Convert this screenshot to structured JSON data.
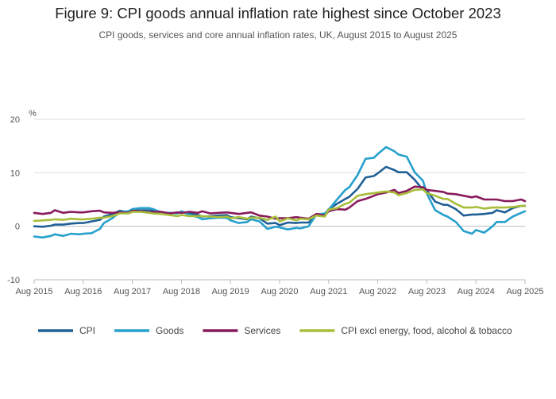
{
  "title": "Figure 9: CPI goods annual inflation rate highest since October 2023",
  "subtitle": "CPI goods, services and core annual inflation rates, UK, August 2015 to August 2025",
  "chart_data": {
    "type": "line",
    "ylabel": "%",
    "xlabel": "",
    "ylim": [
      -10,
      20
    ],
    "yticks": [
      20,
      10,
      0,
      -10
    ],
    "x_start": "2015-08",
    "x_end": "2025-08",
    "xticks": [
      "Aug 2015",
      "Aug 2016",
      "Aug 2017",
      "Aug 2018",
      "Aug 2019",
      "Aug 2020",
      "Aug 2021",
      "Aug 2022",
      "Aug 2023",
      "Aug 2024",
      "Aug 2025"
    ],
    "grid": true,
    "legend_position": "bottom",
    "series": [
      {
        "name": "CPI",
        "color": "#206095",
        "values": [
          [
            2015.58,
            0.0
          ],
          [
            2015.75,
            -0.1
          ],
          [
            2015.92,
            0.1
          ],
          [
            2016.0,
            0.3
          ],
          [
            2016.17,
            0.3
          ],
          [
            2016.33,
            0.5
          ],
          [
            2016.5,
            0.6
          ],
          [
            2016.58,
            0.6
          ],
          [
            2016.75,
            0.9
          ],
          [
            2016.92,
            1.2
          ],
          [
            2017.0,
            1.8
          ],
          [
            2017.17,
            2.3
          ],
          [
            2017.33,
            2.9
          ],
          [
            2017.5,
            2.6
          ],
          [
            2017.58,
            2.9
          ],
          [
            2017.75,
            3.0
          ],
          [
            2017.92,
            3.0
          ],
          [
            2018.0,
            3.0
          ],
          [
            2018.17,
            2.5
          ],
          [
            2018.33,
            2.4
          ],
          [
            2018.5,
            2.5
          ],
          [
            2018.58,
            2.7
          ],
          [
            2018.75,
            2.4
          ],
          [
            2018.92,
            2.1
          ],
          [
            2019.0,
            1.8
          ],
          [
            2019.17,
            1.9
          ],
          [
            2019.33,
            2.0
          ],
          [
            2019.5,
            2.1
          ],
          [
            2019.58,
            1.7
          ],
          [
            2019.75,
            1.5
          ],
          [
            2019.92,
            1.3
          ],
          [
            2020.0,
            1.8
          ],
          [
            2020.17,
            1.5
          ],
          [
            2020.33,
            0.5
          ],
          [
            2020.5,
            0.6
          ],
          [
            2020.58,
            0.2
          ],
          [
            2020.75,
            0.7
          ],
          [
            2020.92,
            0.6
          ],
          [
            2021.0,
            0.7
          ],
          [
            2021.17,
            0.7
          ],
          [
            2021.33,
            2.1
          ],
          [
            2021.5,
            2.0
          ],
          [
            2021.58,
            3.2
          ],
          [
            2021.75,
            4.2
          ],
          [
            2021.92,
            5.1
          ],
          [
            2022.0,
            5.5
          ],
          [
            2022.17,
            7.0
          ],
          [
            2022.33,
            9.1
          ],
          [
            2022.5,
            9.4
          ],
          [
            2022.58,
            9.9
          ],
          [
            2022.75,
            11.1
          ],
          [
            2022.92,
            10.5
          ],
          [
            2023.0,
            10.1
          ],
          [
            2023.17,
            10.1
          ],
          [
            2023.33,
            8.7
          ],
          [
            2023.5,
            6.8
          ],
          [
            2023.58,
            6.7
          ],
          [
            2023.75,
            4.6
          ],
          [
            2023.92,
            4.0
          ],
          [
            2024.0,
            4.0
          ],
          [
            2024.17,
            3.2
          ],
          [
            2024.33,
            2.0
          ],
          [
            2024.5,
            2.2
          ],
          [
            2024.58,
            2.2
          ],
          [
            2024.75,
            2.3
          ],
          [
            2024.92,
            2.5
          ],
          [
            2025.0,
            3.0
          ],
          [
            2025.17,
            2.6
          ],
          [
            2025.33,
            3.4
          ],
          [
            2025.5,
            3.8
          ],
          [
            2025.58,
            3.8
          ]
        ]
      },
      {
        "name": "Goods",
        "color": "#27a0cc",
        "values": [
          [
            2015.58,
            -1.9
          ],
          [
            2015.75,
            -2.1
          ],
          [
            2015.92,
            -1.8
          ],
          [
            2016.0,
            -1.5
          ],
          [
            2016.17,
            -1.8
          ],
          [
            2016.33,
            -1.4
          ],
          [
            2016.5,
            -1.5
          ],
          [
            2016.58,
            -1.4
          ],
          [
            2016.75,
            -1.3
          ],
          [
            2016.92,
            -0.5
          ],
          [
            2017.0,
            0.6
          ],
          [
            2017.17,
            1.5
          ],
          [
            2017.33,
            2.7
          ],
          [
            2017.5,
            2.8
          ],
          [
            2017.58,
            3.2
          ],
          [
            2017.75,
            3.4
          ],
          [
            2017.92,
            3.4
          ],
          [
            2018.0,
            3.2
          ],
          [
            2018.17,
            2.6
          ],
          [
            2018.33,
            2.5
          ],
          [
            2018.5,
            2.4
          ],
          [
            2018.58,
            2.8
          ],
          [
            2018.75,
            2.1
          ],
          [
            2018.92,
            1.7
          ],
          [
            2019.0,
            1.3
          ],
          [
            2019.17,
            1.5
          ],
          [
            2019.33,
            1.6
          ],
          [
            2019.5,
            1.6
          ],
          [
            2019.58,
            1.1
          ],
          [
            2019.75,
            0.6
          ],
          [
            2019.92,
            0.8
          ],
          [
            2020.0,
            1.3
          ],
          [
            2020.17,
            0.9
          ],
          [
            2020.33,
            -0.5
          ],
          [
            2020.5,
            -0.1
          ],
          [
            2020.58,
            -0.2
          ],
          [
            2020.75,
            -0.6
          ],
          [
            2020.92,
            -0.3
          ],
          [
            2021.0,
            -0.4
          ],
          [
            2021.17,
            0.0
          ],
          [
            2021.33,
            2.2
          ],
          [
            2021.5,
            2.4
          ],
          [
            2021.58,
            3.1
          ],
          [
            2021.75,
            5.0
          ],
          [
            2021.92,
            6.8
          ],
          [
            2022.0,
            7.3
          ],
          [
            2022.17,
            9.6
          ],
          [
            2022.33,
            12.6
          ],
          [
            2022.5,
            12.8
          ],
          [
            2022.58,
            13.5
          ],
          [
            2022.75,
            14.8
          ],
          [
            2022.92,
            14.0
          ],
          [
            2023.0,
            13.4
          ],
          [
            2023.17,
            13.0
          ],
          [
            2023.33,
            10.1
          ],
          [
            2023.5,
            8.5
          ],
          [
            2023.58,
            6.1
          ],
          [
            2023.75,
            3.0
          ],
          [
            2023.92,
            2.1
          ],
          [
            2024.0,
            1.8
          ],
          [
            2024.17,
            0.8
          ],
          [
            2024.33,
            -0.9
          ],
          [
            2024.5,
            -1.4
          ],
          [
            2024.58,
            -0.7
          ],
          [
            2024.75,
            -1.2
          ],
          [
            2024.92,
            0.0
          ],
          [
            2025.0,
            0.8
          ],
          [
            2025.17,
            0.8
          ],
          [
            2025.33,
            1.8
          ],
          [
            2025.5,
            2.5
          ],
          [
            2025.58,
            2.8
          ]
        ]
      },
      {
        "name": "Services",
        "color": "#871a5b",
        "values": [
          [
            2015.58,
            2.5
          ],
          [
            2015.75,
            2.3
          ],
          [
            2015.92,
            2.5
          ],
          [
            2016.0,
            3.0
          ],
          [
            2016.17,
            2.5
          ],
          [
            2016.33,
            2.7
          ],
          [
            2016.5,
            2.6
          ],
          [
            2016.58,
            2.6
          ],
          [
            2016.75,
            2.8
          ],
          [
            2016.92,
            2.9
          ],
          [
            2017.0,
            2.6
          ],
          [
            2017.17,
            2.5
          ],
          [
            2017.33,
            2.6
          ],
          [
            2017.5,
            2.5
          ],
          [
            2017.58,
            2.9
          ],
          [
            2017.75,
            2.8
          ],
          [
            2017.92,
            2.6
          ],
          [
            2018.0,
            2.7
          ],
          [
            2018.17,
            2.7
          ],
          [
            2018.33,
            2.4
          ],
          [
            2018.5,
            2.6
          ],
          [
            2018.58,
            2.5
          ],
          [
            2018.75,
            2.7
          ],
          [
            2018.92,
            2.5
          ],
          [
            2019.0,
            2.8
          ],
          [
            2019.17,
            2.4
          ],
          [
            2019.33,
            2.5
          ],
          [
            2019.5,
            2.6
          ],
          [
            2019.58,
            2.5
          ],
          [
            2019.75,
            2.3
          ],
          [
            2019.92,
            2.5
          ],
          [
            2020.0,
            2.6
          ],
          [
            2020.17,
            2.0
          ],
          [
            2020.33,
            1.8
          ],
          [
            2020.5,
            1.4
          ],
          [
            2020.58,
            1.5
          ],
          [
            2020.75,
            1.5
          ],
          [
            2020.92,
            1.7
          ],
          [
            2021.0,
            1.6
          ],
          [
            2021.17,
            1.4
          ],
          [
            2021.33,
            2.3
          ],
          [
            2021.5,
            2.0
          ],
          [
            2021.58,
            2.8
          ],
          [
            2021.75,
            3.2
          ],
          [
            2021.92,
            3.1
          ],
          [
            2022.0,
            3.5
          ],
          [
            2022.17,
            4.7
          ],
          [
            2022.33,
            5.1
          ],
          [
            2022.5,
            5.7
          ],
          [
            2022.58,
            6.0
          ],
          [
            2022.75,
            6.3
          ],
          [
            2022.92,
            6.8
          ],
          [
            2023.0,
            6.2
          ],
          [
            2023.17,
            6.6
          ],
          [
            2023.33,
            7.4
          ],
          [
            2023.5,
            7.3
          ],
          [
            2023.58,
            6.8
          ],
          [
            2023.75,
            6.6
          ],
          [
            2023.92,
            6.4
          ],
          [
            2024.0,
            6.1
          ],
          [
            2024.17,
            6.0
          ],
          [
            2024.33,
            5.7
          ],
          [
            2024.5,
            5.4
          ],
          [
            2024.58,
            5.6
          ],
          [
            2024.75,
            5.0
          ],
          [
            2024.92,
            5.0
          ],
          [
            2025.0,
            5.0
          ],
          [
            2025.17,
            4.7
          ],
          [
            2025.33,
            4.7
          ],
          [
            2025.5,
            5.0
          ],
          [
            2025.58,
            4.7
          ]
        ]
      },
      {
        "name": "CPI excl energy, food, alcohol & tobacco",
        "color": "#a8bd3a",
        "values": [
          [
            2015.58,
            1.0
          ],
          [
            2015.75,
            1.1
          ],
          [
            2015.92,
            1.2
          ],
          [
            2016.0,
            1.3
          ],
          [
            2016.17,
            1.2
          ],
          [
            2016.33,
            1.4
          ],
          [
            2016.5,
            1.3
          ],
          [
            2016.58,
            1.3
          ],
          [
            2016.75,
            1.4
          ],
          [
            2016.92,
            1.6
          ],
          [
            2017.0,
            1.6
          ],
          [
            2017.17,
            1.9
          ],
          [
            2017.33,
            2.4
          ],
          [
            2017.5,
            2.4
          ],
          [
            2017.58,
            2.7
          ],
          [
            2017.75,
            2.7
          ],
          [
            2017.92,
            2.5
          ],
          [
            2018.0,
            2.4
          ],
          [
            2018.17,
            2.3
          ],
          [
            2018.33,
            2.1
          ],
          [
            2018.5,
            1.9
          ],
          [
            2018.58,
            2.1
          ],
          [
            2018.75,
            1.9
          ],
          [
            2018.92,
            1.9
          ],
          [
            2019.0,
            1.9
          ],
          [
            2019.17,
            1.8
          ],
          [
            2019.33,
            1.7
          ],
          [
            2019.5,
            1.8
          ],
          [
            2019.58,
            1.5
          ],
          [
            2019.75,
            1.7
          ],
          [
            2019.92,
            1.4
          ],
          [
            2020.0,
            1.6
          ],
          [
            2020.17,
            1.6
          ],
          [
            2020.33,
            1.2
          ],
          [
            2020.5,
            1.8
          ],
          [
            2020.58,
            0.9
          ],
          [
            2020.75,
            1.5
          ],
          [
            2020.92,
            1.1
          ],
          [
            2021.0,
            1.4
          ],
          [
            2021.17,
            1.3
          ],
          [
            2021.33,
            2.0
          ],
          [
            2021.5,
            1.8
          ],
          [
            2021.58,
            3.1
          ],
          [
            2021.75,
            3.4
          ],
          [
            2021.92,
            4.2
          ],
          [
            2022.0,
            4.4
          ],
          [
            2022.17,
            5.7
          ],
          [
            2022.33,
            6.0
          ],
          [
            2022.5,
            6.2
          ],
          [
            2022.58,
            6.3
          ],
          [
            2022.75,
            6.5
          ],
          [
            2022.92,
            6.3
          ],
          [
            2023.0,
            5.8
          ],
          [
            2023.17,
            6.2
          ],
          [
            2023.33,
            6.8
          ],
          [
            2023.5,
            6.9
          ],
          [
            2023.58,
            6.2
          ],
          [
            2023.75,
            5.7
          ],
          [
            2023.92,
            5.1
          ],
          [
            2024.0,
            5.1
          ],
          [
            2024.17,
            4.2
          ],
          [
            2024.33,
            3.5
          ],
          [
            2024.5,
            3.5
          ],
          [
            2024.58,
            3.6
          ],
          [
            2024.75,
            3.3
          ],
          [
            2024.92,
            3.5
          ],
          [
            2025.0,
            3.5
          ],
          [
            2025.17,
            3.5
          ],
          [
            2025.33,
            3.6
          ],
          [
            2025.5,
            3.8
          ],
          [
            2025.58,
            3.8
          ]
        ]
      }
    ]
  }
}
